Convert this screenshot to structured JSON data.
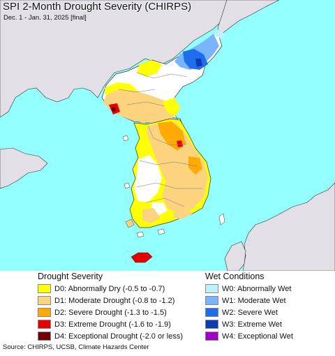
{
  "header": {
    "title": "SPI 2-Month Drought Severity (CHIRPS)",
    "subtitle": "Dec. 1 - Jan. 31, 2025 [final]"
  },
  "colors": {
    "ocean": "#93ffff",
    "land_other": "#e2e0e6",
    "land_normal": "#ffffff",
    "d0": "#ffff00",
    "d1": "#fcd37f",
    "d2": "#ffaa00",
    "d3": "#e60000",
    "d4": "#730000",
    "w0": "#bef0ff",
    "w1": "#78b4ff",
    "w2": "#1e6eeb",
    "w3": "#0a3cb4",
    "w4": "#a000c8"
  },
  "legend": {
    "drought": {
      "title": "Drought Severity",
      "items": [
        {
          "label": "D0: Abnormally Dry (-0.5 to -0.7)",
          "color": "#ffff00"
        },
        {
          "label": "D1: Moderate Drought (-0.8 to -1.2)",
          "color": "#fcd37f"
        },
        {
          "label": "D2: Severe Drought (-1.3 to -1.5)",
          "color": "#ffaa00"
        },
        {
          "label": "D3: Extreme Drought (-1.6 to -1.9)",
          "color": "#e60000"
        },
        {
          "label": "D4: Exceptional Drought (-2.0 or less)",
          "color": "#730000"
        }
      ]
    },
    "wet": {
      "title": "Wet Conditions",
      "items": [
        {
          "label": "W0: Abnormally Wet",
          "color": "#bef0ff"
        },
        {
          "label": "W1: Moderate Wet",
          "color": "#78b4ff"
        },
        {
          "label": "W2: Severe Wet",
          "color": "#1e6eeb"
        },
        {
          "label": "W3: Extreme Wet",
          "color": "#0a3cb4"
        },
        {
          "label": "W4: Exceptional Wet",
          "color": "#a000c8"
        }
      ]
    }
  },
  "footer": {
    "source": "Source: CHIRPS, UCSB, Climate Hazards Center"
  }
}
